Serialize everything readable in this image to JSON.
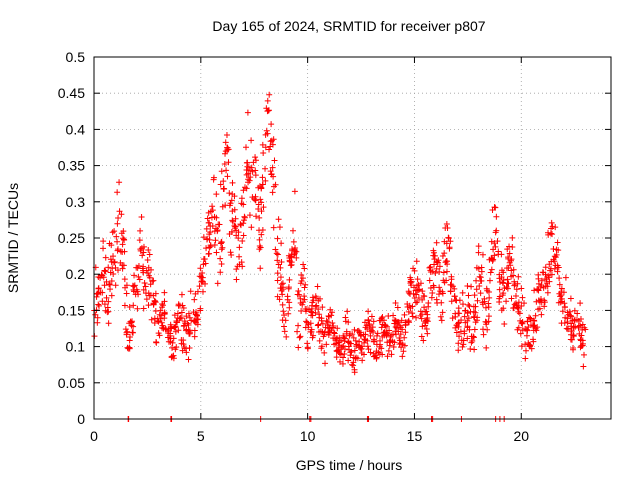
{
  "chart_data": {
    "type": "scatter",
    "title": "Day 165 of 2024, SRMTID for receiver p807",
    "xlabel": "GPS time / hours",
    "ylabel": "SRMTID / TECUs",
    "xlim": [
      0,
      24.2
    ],
    "ylim": [
      0,
      0.5
    ],
    "xticks": [
      0,
      5,
      10,
      15,
      20
    ],
    "xtick_labels": [
      "0",
      "5",
      "10",
      "15",
      "20"
    ],
    "yticks": [
      0,
      0.05,
      0.1,
      0.15,
      0.2,
      0.25,
      0.3,
      0.35,
      0.4,
      0.45,
      0.5
    ],
    "ytick_labels": [
      "0",
      "0.05",
      "0.1",
      "0.15",
      "0.2",
      "0.25",
      "0.3",
      "0.35",
      "0.4",
      "0.45",
      "0.5"
    ],
    "grid": true,
    "marker": "+",
    "color": "#ff0000",
    "series": [
      {
        "name": "p807",
        "x": [
          0.0,
          0.2,
          0.4,
          0.6,
          0.8,
          1.0,
          1.2,
          1.4,
          1.6,
          1.8,
          2.0,
          2.2,
          2.4,
          2.6,
          2.8,
          3.0,
          3.2,
          3.4,
          3.6,
          3.8,
          4.0,
          4.2,
          4.4,
          4.6,
          4.8,
          5.0,
          5.2,
          5.4,
          5.6,
          5.8,
          6.0,
          6.2,
          6.4,
          6.6,
          6.8,
          7.0,
          7.2,
          7.4,
          7.6,
          7.8,
          8.0,
          8.2,
          8.4,
          8.6,
          8.8,
          9.0,
          9.2,
          9.4,
          9.6,
          9.8,
          10.0,
          10.2,
          10.4,
          10.6,
          10.8,
          11.0,
          11.2,
          11.4,
          11.6,
          11.8,
          12.0,
          12.2,
          12.4,
          12.6,
          12.8,
          13.0,
          13.2,
          13.4,
          13.6,
          13.8,
          14.0,
          14.2,
          14.4,
          14.6,
          14.8,
          15.0,
          15.2,
          15.4,
          15.6,
          15.8,
          16.0,
          16.2,
          16.4,
          16.6,
          16.8,
          17.0,
          17.2,
          17.4,
          17.6,
          17.8,
          18.0,
          18.2,
          18.4,
          18.6,
          18.8,
          19.0,
          19.2,
          19.4,
          19.6,
          19.8,
          20.0,
          20.2,
          20.4,
          20.6,
          20.8,
          21.0,
          21.2,
          21.4,
          21.6,
          21.8,
          22.0,
          22.2,
          22.4,
          22.6,
          22.8
        ],
        "y": [
          0.15,
          0.18,
          0.21,
          0.17,
          0.2,
          0.24,
          0.28,
          0.22,
          0.1,
          0.16,
          0.2,
          0.24,
          0.18,
          0.2,
          0.15,
          0.13,
          0.15,
          0.14,
          0.1,
          0.12,
          0.15,
          0.13,
          0.11,
          0.16,
          0.14,
          0.18,
          0.22,
          0.26,
          0.3,
          0.24,
          0.28,
          0.36,
          0.3,
          0.26,
          0.22,
          0.28,
          0.35,
          0.32,
          0.3,
          0.26,
          0.38,
          0.42,
          0.33,
          0.22,
          0.18,
          0.12,
          0.2,
          0.26,
          0.14,
          0.2,
          0.12,
          0.14,
          0.16,
          0.13,
          0.11,
          0.14,
          0.12,
          0.1,
          0.09,
          0.12,
          0.1,
          0.09,
          0.11,
          0.1,
          0.13,
          0.12,
          0.1,
          0.11,
          0.13,
          0.1,
          0.12,
          0.14,
          0.1,
          0.13,
          0.16,
          0.17,
          0.18,
          0.14,
          0.16,
          0.2,
          0.22,
          0.18,
          0.2,
          0.24,
          0.16,
          0.14,
          0.12,
          0.15,
          0.14,
          0.13,
          0.2,
          0.18,
          0.14,
          0.22,
          0.26,
          0.2,
          0.16,
          0.22,
          0.2,
          0.16,
          0.14,
          0.12,
          0.11,
          0.14,
          0.16,
          0.18,
          0.2,
          0.24,
          0.22,
          0.18,
          0.16,
          0.14,
          0.12,
          0.15,
          0.11
        ],
        "spread": [
          0.06,
          0.06,
          0.05,
          0.06,
          0.05,
          0.07,
          0.06,
          0.07,
          0.05,
          0.06,
          0.06,
          0.06,
          0.05,
          0.05,
          0.05,
          0.04,
          0.04,
          0.04,
          0.04,
          0.04,
          0.05,
          0.05,
          0.04,
          0.04,
          0.05,
          0.05,
          0.05,
          0.06,
          0.07,
          0.07,
          0.07,
          0.08,
          0.08,
          0.07,
          0.07,
          0.07,
          0.08,
          0.07,
          0.08,
          0.07,
          0.08,
          0.07,
          0.08,
          0.08,
          0.07,
          0.06,
          0.07,
          0.08,
          0.05,
          0.05,
          0.04,
          0.04,
          0.04,
          0.04,
          0.04,
          0.04,
          0.04,
          0.03,
          0.03,
          0.04,
          0.04,
          0.03,
          0.03,
          0.03,
          0.04,
          0.04,
          0.03,
          0.04,
          0.04,
          0.03,
          0.04,
          0.04,
          0.04,
          0.04,
          0.05,
          0.05,
          0.05,
          0.05,
          0.05,
          0.05,
          0.06,
          0.06,
          0.06,
          0.07,
          0.05,
          0.05,
          0.05,
          0.05,
          0.05,
          0.05,
          0.05,
          0.06,
          0.05,
          0.06,
          0.06,
          0.06,
          0.05,
          0.06,
          0.06,
          0.05,
          0.05,
          0.04,
          0.04,
          0.05,
          0.05,
          0.05,
          0.06,
          0.06,
          0.06,
          0.06,
          0.05,
          0.05,
          0.04,
          0.05,
          0.04
        ],
        "zero_points": [
          1.6,
          1.62,
          3.6,
          3.63,
          7.8,
          10.1,
          10.15,
          12.8,
          12.85,
          15.8,
          15.85,
          17.2,
          18.8,
          19.0,
          19.2
        ]
      }
    ]
  }
}
